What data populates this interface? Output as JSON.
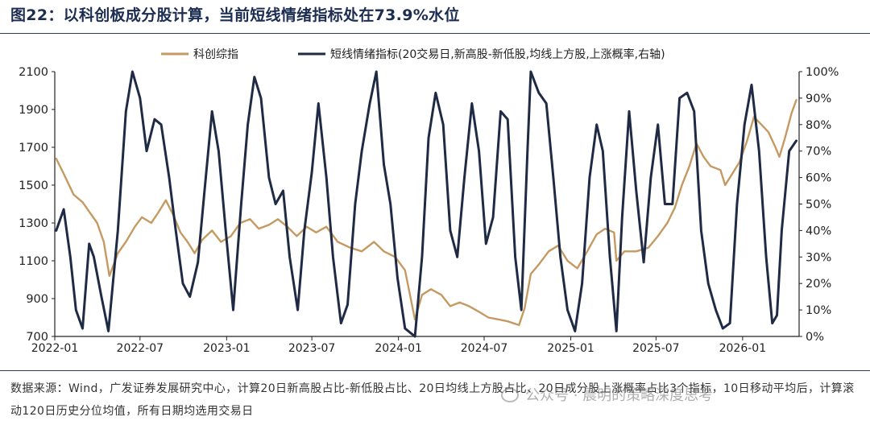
{
  "title": "图22：以科创板成分股计算，当前短线情绪指标处在73.9%水位",
  "source_note": "数据来源：Wind，广发证券发展研究中心，计算20日新高股占比-新低股占比、20日均线上方股占比、20日成分股上涨概率占比3个指标，10日移动平均后，计算滚动120日历史分位均值，所有日期均选用交易日",
  "watermark": "公众号 · 晨明的策略深度思考",
  "colors": {
    "series_gold": "#c59a62",
    "series_navy": "#1f2a44",
    "title": "#1c2d52"
  },
  "chart_data": {
    "type": "line",
    "title": "",
    "x_ticks": [
      "2022-01",
      "2022-07",
      "2023-01",
      "2023-07",
      "2024-01",
      "2024-07",
      "2025-01",
      "2025-07",
      "2026-01"
    ],
    "x_range": [
      "2022-01",
      "2026-05"
    ],
    "y_left": {
      "ticks": [
        "700",
        "900",
        "1100",
        "1300",
        "1500",
        "1700",
        "1900",
        "2100"
      ],
      "range": [
        700,
        2100
      ]
    },
    "y_right": {
      "ticks": [
        "0%",
        "10%",
        "20%",
        "30%",
        "40%",
        "50%",
        "60%",
        "70%",
        "80%",
        "90%",
        "100%"
      ],
      "range": [
        0,
        100
      ]
    },
    "legend_position": "top",
    "series": [
      {
        "name": "科创综指",
        "axis": "left",
        "color": "#c59a62",
        "points": [
          [
            "2022-01-04",
            1640
          ],
          [
            "2022-01-20",
            1560
          ],
          [
            "2022-02-10",
            1450
          ],
          [
            "2022-03-01",
            1410
          ],
          [
            "2022-03-15",
            1360
          ],
          [
            "2022-04-01",
            1300
          ],
          [
            "2022-04-15",
            1200
          ],
          [
            "2022-04-27",
            1020
          ],
          [
            "2022-05-15",
            1140
          ],
          [
            "2022-06-01",
            1200
          ],
          [
            "2022-06-20",
            1280
          ],
          [
            "2022-07-05",
            1330
          ],
          [
            "2022-07-25",
            1300
          ],
          [
            "2022-08-10",
            1360
          ],
          [
            "2022-08-25",
            1420
          ],
          [
            "2022-09-10",
            1340
          ],
          [
            "2022-09-25",
            1250
          ],
          [
            "2022-10-10",
            1200
          ],
          [
            "2022-10-25",
            1140
          ],
          [
            "2022-11-10",
            1210
          ],
          [
            "2022-12-01",
            1260
          ],
          [
            "2022-12-20",
            1200
          ],
          [
            "2023-01-10",
            1230
          ],
          [
            "2023-01-30",
            1300
          ],
          [
            "2023-02-20",
            1320
          ],
          [
            "2023-03-10",
            1270
          ],
          [
            "2023-04-01",
            1290
          ],
          [
            "2023-04-20",
            1320
          ],
          [
            "2023-05-10",
            1280
          ],
          [
            "2023-05-30",
            1230
          ],
          [
            "2023-06-20",
            1280
          ],
          [
            "2023-07-10",
            1250
          ],
          [
            "2023-08-01",
            1280
          ],
          [
            "2023-08-25",
            1200
          ],
          [
            "2023-09-20",
            1170
          ],
          [
            "2023-10-15",
            1150
          ],
          [
            "2023-11-10",
            1200
          ],
          [
            "2023-12-01",
            1150
          ],
          [
            "2023-12-25",
            1120
          ],
          [
            "2024-01-15",
            1050
          ],
          [
            "2024-02-05",
            790
          ],
          [
            "2024-02-20",
            920
          ],
          [
            "2024-03-10",
            950
          ],
          [
            "2024-04-01",
            920
          ],
          [
            "2024-04-20",
            860
          ],
          [
            "2024-05-10",
            880
          ],
          [
            "2024-05-30",
            860
          ],
          [
            "2024-06-20",
            830
          ],
          [
            "2024-07-10",
            800
          ],
          [
            "2024-08-01",
            790
          ],
          [
            "2024-08-20",
            780
          ],
          [
            "2024-09-13",
            760
          ],
          [
            "2024-09-25",
            850
          ],
          [
            "2024-10-08",
            1030
          ],
          [
            "2024-10-25",
            1080
          ],
          [
            "2024-11-15",
            1150
          ],
          [
            "2024-12-05",
            1180
          ],
          [
            "2024-12-25",
            1100
          ],
          [
            "2025-01-15",
            1060
          ],
          [
            "2025-02-05",
            1150
          ],
          [
            "2025-02-25",
            1240
          ],
          [
            "2025-03-15",
            1270
          ],
          [
            "2025-04-03",
            1250
          ],
          [
            "2025-04-08",
            1100
          ],
          [
            "2025-04-25",
            1150
          ],
          [
            "2025-05-20",
            1150
          ],
          [
            "2025-06-15",
            1170
          ],
          [
            "2025-07-05",
            1230
          ],
          [
            "2025-07-25",
            1300
          ],
          [
            "2025-08-10",
            1380
          ],
          [
            "2025-08-25",
            1500
          ],
          [
            "2025-09-10",
            1600
          ],
          [
            "2025-09-25",
            1720
          ],
          [
            "2025-10-10",
            1650
          ],
          [
            "2025-10-25",
            1600
          ],
          [
            "2025-11-15",
            1580
          ],
          [
            "2025-11-25",
            1500
          ],
          [
            "2025-12-10",
            1560
          ],
          [
            "2025-12-25",
            1620
          ],
          [
            "2026-01-10",
            1730
          ],
          [
            "2026-01-25",
            1860
          ],
          [
            "2026-02-10",
            1820
          ],
          [
            "2026-02-25",
            1780
          ],
          [
            "2026-03-10",
            1710
          ],
          [
            "2026-03-20",
            1650
          ],
          [
            "2026-04-01",
            1750
          ],
          [
            "2026-04-15",
            1880
          ],
          [
            "2026-04-25",
            1950
          ]
        ]
      },
      {
        "name": "短线情绪指标(20交易日,新高股-新低股,均线上方股,上涨概率,右轴)",
        "axis": "right",
        "color": "#1f2a44",
        "points": [
          [
            "2022-01-04",
            40
          ],
          [
            "2022-01-20",
            48
          ],
          [
            "2022-02-03",
            30
          ],
          [
            "2022-02-15",
            10
          ],
          [
            "2022-03-01",
            3
          ],
          [
            "2022-03-15",
            35
          ],
          [
            "2022-03-25",
            30
          ],
          [
            "2022-04-10",
            15
          ],
          [
            "2022-04-25",
            2
          ],
          [
            "2022-05-15",
            40
          ],
          [
            "2022-06-01",
            85
          ],
          [
            "2022-06-15",
            100
          ],
          [
            "2022-07-01",
            90
          ],
          [
            "2022-07-15",
            70
          ],
          [
            "2022-08-01",
            82
          ],
          [
            "2022-08-15",
            80
          ],
          [
            "2022-09-01",
            60
          ],
          [
            "2022-09-15",
            40
          ],
          [
            "2022-09-30",
            20
          ],
          [
            "2022-10-15",
            15
          ],
          [
            "2022-11-01",
            28
          ],
          [
            "2022-11-15",
            55
          ],
          [
            "2022-12-01",
            85
          ],
          [
            "2022-12-15",
            70
          ],
          [
            "2022-12-30",
            40
          ],
          [
            "2023-01-15",
            10
          ],
          [
            "2023-02-01",
            50
          ],
          [
            "2023-02-15",
            80
          ],
          [
            "2023-03-01",
            98
          ],
          [
            "2023-03-15",
            90
          ],
          [
            "2023-04-01",
            60
          ],
          [
            "2023-04-15",
            50
          ],
          [
            "2023-05-01",
            55
          ],
          [
            "2023-05-15",
            30
          ],
          [
            "2023-06-01",
            10
          ],
          [
            "2023-06-15",
            40
          ],
          [
            "2023-07-01",
            62
          ],
          [
            "2023-07-15",
            88
          ],
          [
            "2023-08-01",
            60
          ],
          [
            "2023-08-15",
            30
          ],
          [
            "2023-09-01",
            5
          ],
          [
            "2023-09-15",
            12
          ],
          [
            "2023-10-01",
            50
          ],
          [
            "2023-10-15",
            70
          ],
          [
            "2023-11-01",
            88
          ],
          [
            "2023-11-15",
            100
          ],
          [
            "2023-12-01",
            65
          ],
          [
            "2023-12-15",
            50
          ],
          [
            "2023-12-30",
            22
          ],
          [
            "2024-01-15",
            3
          ],
          [
            "2024-02-05",
            0
          ],
          [
            "2024-02-20",
            30
          ],
          [
            "2024-03-05",
            75
          ],
          [
            "2024-03-20",
            92
          ],
          [
            "2024-04-05",
            80
          ],
          [
            "2024-04-20",
            40
          ],
          [
            "2024-05-05",
            30
          ],
          [
            "2024-05-20",
            60
          ],
          [
            "2024-06-05",
            88
          ],
          [
            "2024-06-20",
            70
          ],
          [
            "2024-07-05",
            35
          ],
          [
            "2024-07-20",
            45
          ],
          [
            "2024-08-05",
            85
          ],
          [
            "2024-08-20",
            82
          ],
          [
            "2024-09-05",
            30
          ],
          [
            "2024-09-18",
            10
          ],
          [
            "2024-10-01",
            70
          ],
          [
            "2024-10-08",
            100
          ],
          [
            "2024-10-25",
            92
          ],
          [
            "2024-11-10",
            88
          ],
          [
            "2024-11-25",
            60
          ],
          [
            "2024-12-10",
            30
          ],
          [
            "2024-12-25",
            10
          ],
          [
            "2025-01-10",
            2
          ],
          [
            "2025-01-25",
            20
          ],
          [
            "2025-02-10",
            60
          ],
          [
            "2025-02-25",
            80
          ],
          [
            "2025-03-10",
            70
          ],
          [
            "2025-03-25",
            30
          ],
          [
            "2025-04-08",
            2
          ],
          [
            "2025-04-20",
            45
          ],
          [
            "2025-05-05",
            85
          ],
          [
            "2025-05-20",
            55
          ],
          [
            "2025-06-05",
            28
          ],
          [
            "2025-06-20",
            60
          ],
          [
            "2025-07-05",
            80
          ],
          [
            "2025-07-20",
            50
          ],
          [
            "2025-08-05",
            50
          ],
          [
            "2025-08-20",
            90
          ],
          [
            "2025-09-05",
            92
          ],
          [
            "2025-09-20",
            85
          ],
          [
            "2025-10-05",
            40
          ],
          [
            "2025-10-20",
            20
          ],
          [
            "2025-11-05",
            10
          ],
          [
            "2025-11-20",
            3
          ],
          [
            "2025-12-05",
            5
          ],
          [
            "2025-12-20",
            50
          ],
          [
            "2026-01-05",
            80
          ],
          [
            "2026-01-20",
            95
          ],
          [
            "2026-02-05",
            70
          ],
          [
            "2026-02-20",
            30
          ],
          [
            "2026-03-05",
            5
          ],
          [
            "2026-03-15",
            8
          ],
          [
            "2026-03-25",
            40
          ],
          [
            "2026-04-10",
            70
          ],
          [
            "2026-04-25",
            73.9
          ]
        ]
      }
    ]
  }
}
